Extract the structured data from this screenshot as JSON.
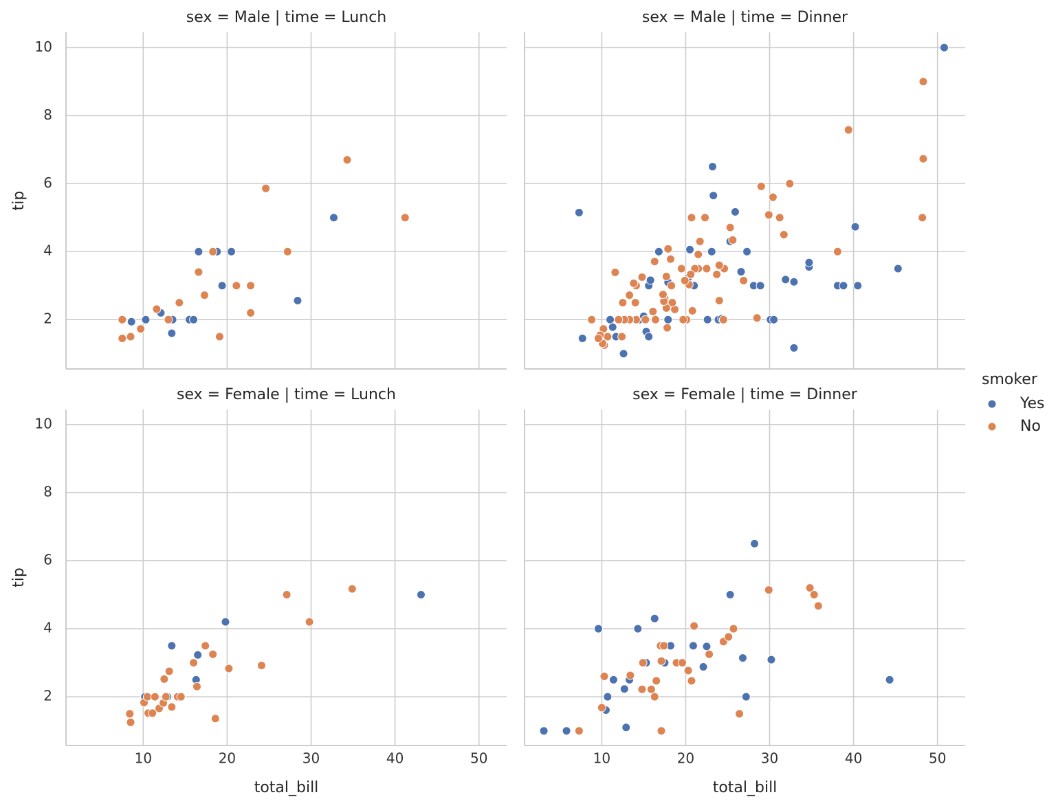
{
  "chart_data": [
    {
      "type": "scatter",
      "title": "sex = Male | time = Lunch",
      "ylabel": "tip",
      "legend_title": "smoker",
      "xlim": [
        0.8,
        53.3
      ],
      "ylim": [
        0.55,
        10.45
      ],
      "xticks": [
        10,
        20,
        30,
        40,
        50
      ],
      "yticks": [
        2,
        4,
        6,
        8,
        10
      ],
      "grid": true,
      "series": [
        {
          "name": "Yes",
          "color": "#4c72b0",
          "x": [
            8.6,
            10.3,
            12.1,
            13.5,
            13.4,
            15.5,
            16.0,
            16.6,
            18.8,
            19.4,
            20.5,
            28.4,
            32.7
          ],
          "values": [
            1.94,
            2.0,
            2.2,
            2.0,
            1.6,
            2.0,
            2.0,
            4.0,
            4.0,
            3.0,
            4.0,
            2.56,
            5.0
          ]
        },
        {
          "name": "No",
          "color": "#dd8452",
          "x": [
            7.5,
            7.5,
            8.5,
            9.7,
            11.6,
            13.0,
            14.3,
            16.6,
            17.3,
            18.3,
            19.1,
            21.1,
            22.8,
            22.8,
            24.6,
            27.2,
            34.3,
            41.2
          ],
          "values": [
            2.0,
            1.45,
            1.5,
            1.73,
            2.31,
            2.0,
            2.5,
            3.4,
            2.72,
            4.0,
            1.5,
            3.0,
            3.0,
            2.2,
            5.86,
            4.0,
            6.7,
            5.0
          ]
        }
      ]
    },
    {
      "type": "scatter",
      "title": "sex = Male | time = Dinner",
      "xlim": [
        0.8,
        53.3
      ],
      "ylim": [
        0.55,
        10.45
      ],
      "xticks": [
        10,
        20,
        30,
        40,
        50
      ],
      "yticks": [
        2,
        4,
        6,
        8,
        10
      ],
      "grid": true,
      "series": [
        {
          "name": "Yes",
          "color": "#4c72b0",
          "x": [
            50.8,
            7.3,
            7.7,
            11.0,
            11.3,
            11.7,
            12.6,
            14.5,
            15.0,
            15.3,
            15.6,
            15.6,
            15.8,
            16.8,
            17.9,
            17.9,
            20.3,
            20.5,
            21.0,
            22.6,
            23.1,
            23.2,
            23.3,
            23.9,
            24.3,
            25.3,
            25.9,
            26.6,
            27.3,
            28.1,
            28.9,
            30.1,
            30.5,
            31.9,
            32.9,
            32.9,
            34.7,
            34.7,
            38.1,
            38.8,
            40.2,
            40.5,
            45.3
          ],
          "values": [
            10.0,
            5.15,
            1.45,
            2.0,
            1.78,
            1.5,
            1.0,
            2.0,
            2.1,
            1.65,
            1.5,
            3.0,
            3.16,
            4.0,
            2.0,
            3.1,
            3.23,
            4.06,
            3.0,
            2.0,
            4.0,
            6.5,
            5.65,
            2.0,
            2.03,
            4.3,
            5.17,
            3.41,
            4.0,
            3.0,
            3.0,
            2.0,
            2.0,
            3.18,
            1.17,
            3.11,
            3.55,
            3.68,
            3.0,
            3.0,
            4.73,
            3.0,
            3.5
          ]
        },
        {
          "name": "No",
          "color": "#dd8452",
          "x": [
            48.3,
            48.3,
            48.2,
            39.4,
            38.1,
            32.4,
            31.7,
            31.2,
            30.4,
            29.9,
            29.0,
            28.5,
            26.9,
            25.6,
            25.3,
            24.5,
            24.6,
            24.0,
            24.0,
            23.7,
            22.3,
            22.5,
            21.7,
            21.5,
            21.5,
            21.1,
            20.8,
            20.7,
            20.6,
            20.4,
            20.1,
            19.9,
            19.7,
            19.5,
            18.7,
            18.4,
            18.3,
            18.2,
            17.9,
            17.7,
            17.7,
            17.8,
            17.5,
            17.4,
            17.3,
            16.4,
            16.3,
            16.1,
            15.2,
            14.8,
            14.1,
            14.1,
            14.0,
            13.8,
            13.3,
            13.3,
            12.7,
            12.5,
            12.4,
            12.0,
            11.6,
            10.7,
            10.3,
            10.1,
            10.2,
            9.8,
            9.6,
            8.8
          ],
          "values": [
            9.0,
            6.73,
            5.0,
            7.58,
            4.0,
            6.0,
            4.5,
            5.0,
            5.6,
            5.08,
            5.92,
            2.05,
            3.15,
            4.34,
            4.71,
            2.0,
            3.5,
            3.6,
            2.56,
            3.33,
            5.0,
            3.5,
            4.3,
            3.92,
            3.5,
            3.5,
            2.26,
            5.0,
            3.33,
            3.03,
            2.0,
            3.15,
            2.0,
            3.5,
            2.3,
            2.5,
            3.0,
            3.78,
            4.08,
            3.27,
            2.34,
            1.76,
            2.62,
            2.54,
            2.74,
            2.0,
            3.71,
            2.24,
            2.0,
            3.25,
            3.0,
            2.0,
            2.5,
            3.07,
            2.72,
            2.0,
            2.0,
            2.5,
            1.5,
            2.0,
            3.39,
            1.5,
            1.25,
            1.3,
            1.73,
            1.54,
            1.45,
            2.0
          ]
        }
      ]
    },
    {
      "type": "scatter",
      "title": "sex = Female | time = Lunch",
      "xlabel": "total_bill",
      "ylabel": "tip",
      "xlim": [
        0.8,
        53.3
      ],
      "ylim": [
        0.57,
        10.44
      ],
      "xticks": [
        10,
        20,
        30,
        40,
        50
      ],
      "yticks": [
        2,
        4,
        6,
        8,
        10
      ],
      "grid": true,
      "series": [
        {
          "name": "Yes",
          "color": "#4c72b0",
          "x": [
            10.2,
            12.9,
            13.4,
            16.3,
            16.5,
            19.8,
            43.1
          ],
          "values": [
            2.0,
            2.0,
            3.5,
            2.5,
            3.23,
            4.2,
            5.0
          ]
        },
        {
          "name": "No",
          "color": "#dd8452",
          "x": [
            8.4,
            8.5,
            10.1,
            10.5,
            10.6,
            11.1,
            11.4,
            11.9,
            12.4,
            12.5,
            12.7,
            13.1,
            13.4,
            14.1,
            14.5,
            16.0,
            16.4,
            17.4,
            18.3,
            18.6,
            20.2,
            24.1,
            27.1,
            29.8,
            34.9
          ],
          "values": [
            1.5,
            1.25,
            1.83,
            2.0,
            1.52,
            1.52,
            2.0,
            1.66,
            1.82,
            2.52,
            2.0,
            2.75,
            1.7,
            2.0,
            2.0,
            3.0,
            2.3,
            3.5,
            3.25,
            1.36,
            2.83,
            2.92,
            5.0,
            4.2,
            5.17
          ]
        }
      ]
    },
    {
      "type": "scatter",
      "title": "sex = Female | time = Dinner",
      "xlabel": "total_bill",
      "xlim": [
        0.8,
        53.3
      ],
      "ylim": [
        0.57,
        10.44
      ],
      "xticks": [
        10,
        20,
        30,
        40,
        50
      ],
      "yticks": [
        2,
        4,
        6,
        8,
        10
      ],
      "grid": true,
      "series": [
        {
          "name": "Yes",
          "color": "#4c72b0",
          "x": [
            3.1,
            5.8,
            9.6,
            10.5,
            10.7,
            11.4,
            12.7,
            12.9,
            13.3,
            14.3,
            15.3,
            16.3,
            17.5,
            18.2,
            20.9,
            22.1,
            22.5,
            25.3,
            26.8,
            27.2,
            28.2,
            30.2,
            44.3
          ],
          "values": [
            1.0,
            1.0,
            4.0,
            1.61,
            2.0,
            2.5,
            2.23,
            1.1,
            2.5,
            4.0,
            3.0,
            4.3,
            3.0,
            3.5,
            3.5,
            2.88,
            3.48,
            5.0,
            3.14,
            2.0,
            6.5,
            3.09,
            2.5
          ]
        },
        {
          "name": "No",
          "color": "#dd8452",
          "x": [
            7.3,
            10.0,
            10.3,
            13.4,
            14.8,
            14.9,
            15.9,
            16.3,
            16.5,
            17.0,
            17.1,
            17.1,
            17.4,
            18.9,
            19.6,
            20.3,
            20.7,
            21.0,
            22.8,
            24.5,
            25.1,
            25.7,
            26.4,
            29.9,
            34.8,
            35.3,
            35.8
          ],
          "values": [
            1.0,
            1.68,
            2.6,
            2.63,
            2.22,
            3.0,
            2.22,
            2.0,
            2.47,
            3.5,
            1.0,
            3.05,
            3.5,
            3.0,
            3.0,
            2.77,
            2.47,
            4.08,
            3.25,
            3.62,
            3.76,
            4.0,
            1.5,
            5.14,
            5.2,
            5.0,
            4.67
          ]
        }
      ]
    }
  ]
}
